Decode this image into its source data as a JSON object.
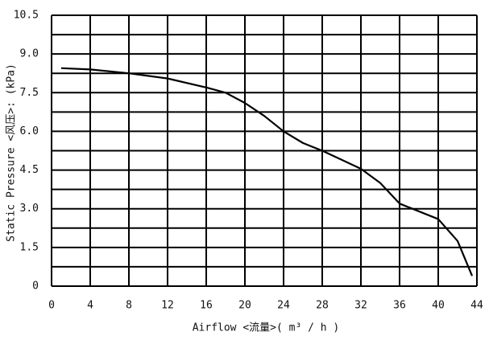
{
  "chart_data": {
    "type": "line",
    "x_label": "Airflow  <流量>( m³ / h )",
    "y_label": "Static  Pressure  <风压>: (kPa)",
    "x": [
      1,
      4,
      8,
      12,
      16,
      18,
      20,
      22,
      24,
      26,
      28,
      30,
      32,
      34,
      36,
      38,
      40,
      42,
      43.5
    ],
    "series": [
      {
        "color": "#000000",
        "values": [
          8.45,
          8.4,
          8.25,
          8.05,
          7.7,
          7.5,
          7.1,
          6.6,
          6.0,
          5.55,
          5.25,
          4.9,
          4.55,
          4.0,
          3.2,
          2.9,
          2.6,
          1.75,
          0.4
        ]
      }
    ],
    "xlim": [
      0,
      44
    ],
    "xticks": [
      0,
      4,
      8,
      12,
      16,
      20,
      24,
      28,
      32,
      36,
      40,
      44
    ],
    "ylim": [
      0,
      10.5
    ],
    "yticks": [
      0,
      1.5,
      {
        "value": 3,
        "label": "3.0"
      },
      4.5,
      {
        "value": 6,
        "label": "6.0"
      },
      7.5,
      {
        "value": 9,
        "label": "9.0"
      },
      10.5
    ],
    "grid": true
  }
}
